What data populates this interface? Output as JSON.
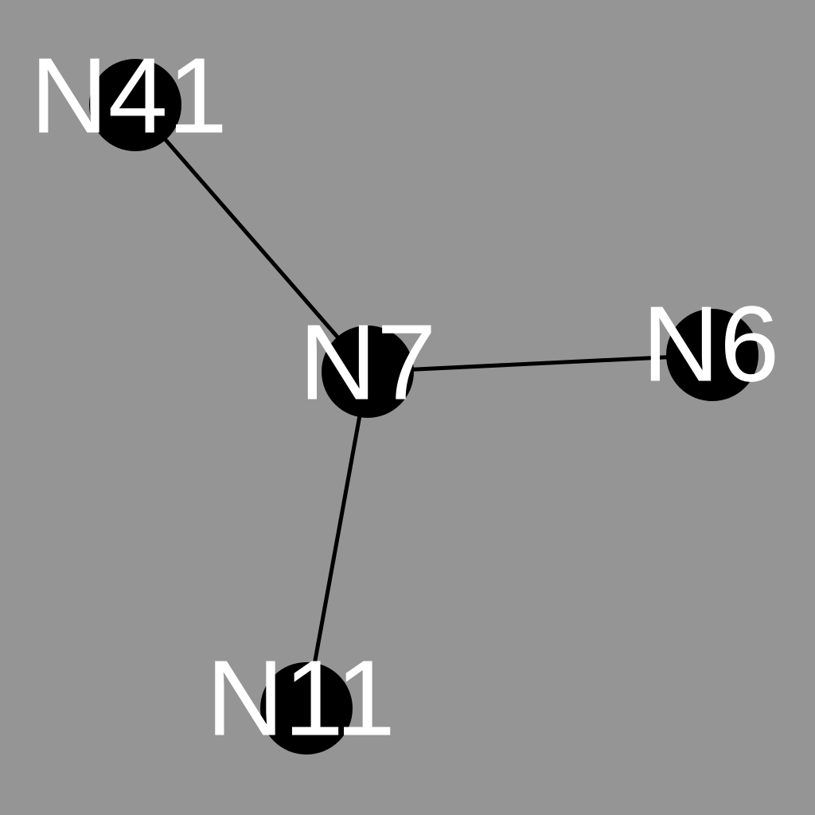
{
  "graph": {
    "nodes": [
      {
        "id": "N41",
        "label": "N41"
      },
      {
        "id": "N7",
        "label": "N7"
      },
      {
        "id": "N6",
        "label": "N6"
      },
      {
        "id": "N11",
        "label": "N11"
      }
    ],
    "edges": [
      {
        "source": "N41",
        "target": "N7"
      },
      {
        "source": "N7",
        "target": "N6"
      },
      {
        "source": "N7",
        "target": "N11"
      }
    ],
    "colors": {
      "background": "#959595",
      "node_fill": "#000000",
      "edge": "#000000",
      "label": "#ffffff"
    }
  }
}
